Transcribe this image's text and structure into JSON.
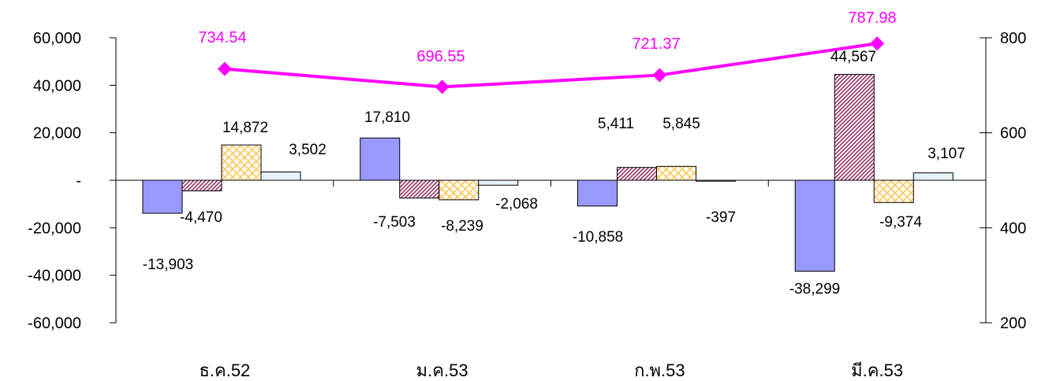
{
  "chart_data": {
    "type": "bar",
    "categories": [
      "ธ.ค.52",
      "ม.ค.53",
      "ก.พ.53",
      "มี.ค.53"
    ],
    "series": [
      {
        "values": [
          -13903,
          17810,
          -10858,
          -38299
        ],
        "labels": [
          "-13,903",
          "17,810",
          "-10,858",
          "-38,299"
        ],
        "color": "#9999ff",
        "pattern": "solid"
      },
      {
        "values": [
          -4470,
          -7503,
          5411,
          44567
        ],
        "labels": [
          "-4,470",
          "-7,503",
          "5,411",
          "44,567"
        ],
        "color": "#993366",
        "pattern": "diagonal-hatch"
      },
      {
        "values": [
          14872,
          -8239,
          5845,
          -9374
        ],
        "labels": [
          "14,872",
          "-8,239",
          "5,845",
          "-9,374"
        ],
        "color": "#ffcc66",
        "pattern": "crosshatch"
      },
      {
        "values": [
          3502,
          -2068,
          -397,
          3107
        ],
        "labels": [
          "3,502",
          "-2,068",
          "-397",
          "3,107"
        ],
        "color": "#99ccff",
        "pattern": "dotted"
      }
    ],
    "line_series": {
      "type": "line",
      "axis": "right",
      "values": [
        734.54,
        696.55,
        721.37,
        787.98
      ],
      "labels": [
        "734.54",
        "696.55",
        "721.37",
        "787.98"
      ],
      "color": "#ff00ff",
      "marker": "diamond"
    },
    "ylim": [
      -60000,
      60000
    ],
    "y_ticks": [
      60000,
      40000,
      20000,
      0,
      -20000,
      -40000,
      -60000
    ],
    "y_tick_labels": [
      "60,000",
      "40,000",
      "20,000",
      "-",
      "-20,000",
      "-40,000",
      "-60,000"
    ],
    "y2lim": [
      200,
      800
    ],
    "y2_ticks": [
      800,
      600,
      400,
      200
    ],
    "y2_tick_labels": [
      "800",
      "600",
      "400",
      "200"
    ],
    "grid": false,
    "legend": "none"
  }
}
